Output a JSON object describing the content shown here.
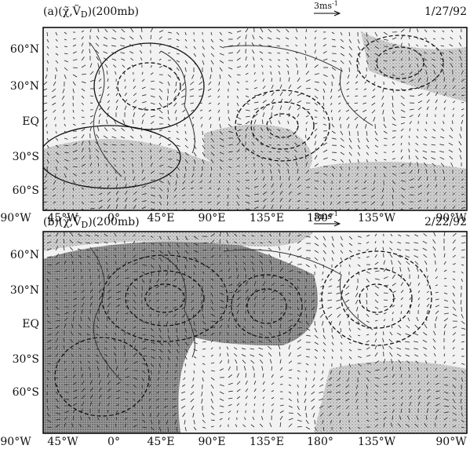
{
  "panels": [
    {
      "title": {
        "prefix": "(a)(χ̃,Ṽ",
        "sub": "D",
        "suffix": ")(200mb)"
      },
      "scale": {
        "base": "3ms",
        "sup": "-1"
      },
      "date": "1/27/92"
    },
    {
      "title": {
        "prefix": "(b)(χ̃,Ṽ",
        "sub": "D",
        "suffix": ")(200mb)"
      },
      "scale": {
        "base": "3ms",
        "sup": "-1"
      },
      "date": "2/22/92"
    }
  ],
  "lat_labels": [
    "60°N",
    "30°N",
    "EQ",
    "30°S",
    "60°S"
  ],
  "lon_labels": [
    "90°W",
    "45°W",
    "0°",
    "45°E",
    "90°E",
    "135°E",
    "180°",
    "135°W",
    "90°W"
  ]
}
